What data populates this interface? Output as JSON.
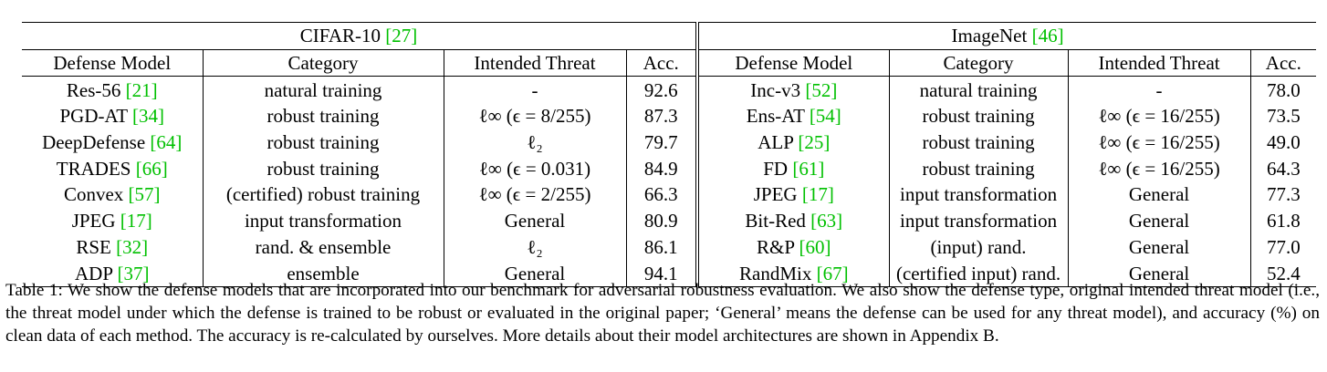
{
  "table": {
    "groups": [
      {
        "name": "CIFAR-10",
        "cite": "[27]"
      },
      {
        "name": "ImageNet",
        "cite": "[46]"
      }
    ],
    "headers": [
      "Defense Model",
      "Category",
      "Intended Threat",
      "Acc.",
      "Defense Model",
      "Category",
      "Intended Threat",
      "Acc."
    ],
    "rows": [
      {
        "l_model": "Res-56",
        "l_cite": "[21]",
        "l_cat": "natural training",
        "l_threat": "-",
        "l_acc": "92.6",
        "r_model": "Inc-v3",
        "r_cite": "[52]",
        "r_cat": "natural training",
        "r_threat": "-",
        "r_acc": "78.0"
      },
      {
        "l_model": "PGD-AT",
        "l_cite": "[34]",
        "l_cat": "robust training",
        "l_threat": "ℓ∞ (ϵ = 8/255)",
        "l_acc": "87.3",
        "r_model": "Ens-AT",
        "r_cite": "[54]",
        "r_cat": "robust training",
        "r_threat": "ℓ∞ (ϵ = 16/255)",
        "r_acc": "73.5"
      },
      {
        "l_model": "DeepDefense",
        "l_cite": "[64]",
        "l_cat": "robust training",
        "l_threat": "ℓ₂",
        "l_acc": "79.7",
        "r_model": "ALP",
        "r_cite": "[25]",
        "r_cat": "robust training",
        "r_threat": "ℓ∞ (ϵ = 16/255)",
        "r_acc": "49.0"
      },
      {
        "l_model": "TRADES",
        "l_cite": "[66]",
        "l_cat": "robust training",
        "l_threat": "ℓ∞ (ϵ = 0.031)",
        "l_acc": "84.9",
        "r_model": "FD",
        "r_cite": "[61]",
        "r_cat": "robust training",
        "r_threat": "ℓ∞ (ϵ = 16/255)",
        "r_acc": "64.3"
      },
      {
        "l_model": "Convex",
        "l_cite": "[57]",
        "l_cat": "(certified) robust training",
        "l_threat": "ℓ∞ (ϵ = 2/255)",
        "l_acc": "66.3",
        "r_model": "JPEG",
        "r_cite": "[17]",
        "r_cat": "input transformation",
        "r_threat": "General",
        "r_acc": "77.3"
      },
      {
        "l_model": "JPEG",
        "l_cite": "[17]",
        "l_cat": "input transformation",
        "l_threat": "General",
        "l_acc": "80.9",
        "r_model": "Bit-Red",
        "r_cite": "[63]",
        "r_cat": "input transformation",
        "r_threat": "General",
        "r_acc": "61.8"
      },
      {
        "l_model": "RSE",
        "l_cite": "[32]",
        "l_cat": "rand. & ensemble",
        "l_threat": "ℓ₂",
        "l_acc": "86.1",
        "r_model": "R&P",
        "r_cite": "[60]",
        "r_cat": "(input) rand.",
        "r_threat": "General",
        "r_acc": "77.0"
      },
      {
        "l_model": "ADP",
        "l_cite": "[37]",
        "l_cat": "ensemble",
        "l_threat": "General",
        "l_acc": "94.1",
        "r_model": "RandMix",
        "r_cite": "[67]",
        "r_cat": "(certified input) rand.",
        "r_threat": "General",
        "r_acc": "52.4"
      }
    ]
  },
  "caption": "Table 1: We show the defense models that are incorporated into our benchmark for adversarial robustness evaluation. We also show the defense type, original intended threat model (i.e., the threat model under which the defense is trained to be robust or evaluated in the original paper; ‘General’ means the defense can be used for any threat model), and accuracy (%) on clean data of each method. The accuracy is re-calculated by ourselves. More details about their model architectures are shown in Appendix B."
}
